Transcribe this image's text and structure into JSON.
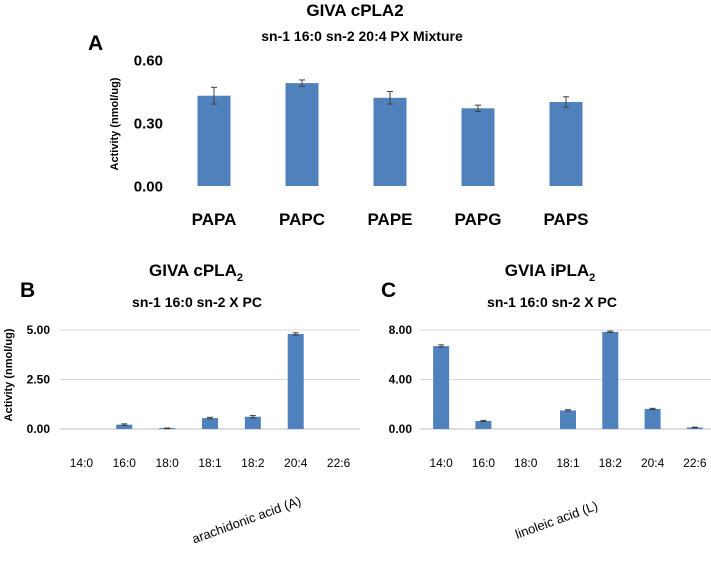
{
  "chart_data": [
    {
      "panel": "A",
      "type": "bar",
      "title": "GIVA cPLA2",
      "subtitle": "sn-1 16:0 sn-2 20:4 PX Mixture",
      "ylabel": "Activity (nmol/ug)",
      "xlabel": "",
      "categories": [
        "PAPA",
        "PAPC",
        "PAPE",
        "PAPG",
        "PAPS"
      ],
      "values": [
        0.43,
        0.49,
        0.42,
        0.37,
        0.4
      ],
      "errors": [
        0.04,
        0.015,
        0.03,
        0.015,
        0.025
      ],
      "ylim": [
        0,
        0.6
      ],
      "yticks": [
        "0.00",
        "0.30",
        "0.60"
      ],
      "ytick_values": [
        0,
        0.3,
        0.6
      ],
      "color": "#4f81bd"
    },
    {
      "panel": "B",
      "type": "bar",
      "title": "GIVA cPLA",
      "title_sub": "2",
      "subtitle": "sn-1 16:0 sn-2 X PC",
      "ylabel": "Activity (nmol/ug)",
      "xlabel": "arachidonic acid (A)",
      "categories": [
        "14:0",
        "16:0",
        "18:0",
        "18:1",
        "18:2",
        "20:4",
        "22:6"
      ],
      "values": [
        0.0,
        0.22,
        0.03,
        0.55,
        0.62,
        4.8,
        0.0
      ],
      "errors": [
        0.0,
        0.04,
        0.02,
        0.04,
        0.06,
        0.06,
        0.0
      ],
      "ylim": [
        0,
        5
      ],
      "yticks": [
        "0.00",
        "2.50",
        "5.00"
      ],
      "ytick_values": [
        0,
        2.5,
        5
      ],
      "color": "#4f81bd"
    },
    {
      "panel": "C",
      "type": "bar",
      "title": "GVIA iPLA",
      "title_sub": "2",
      "subtitle": "sn-1 16:0 sn-2 X PC",
      "ylabel": "",
      "xlabel": "linoleic acid (L)",
      "categories": [
        "14:0",
        "16:0",
        "18:0",
        "18:1",
        "18:2",
        "20:4",
        "22:6"
      ],
      "values": [
        6.7,
        0.65,
        0.0,
        1.5,
        7.85,
        1.62,
        0.12
      ],
      "errors": [
        0.1,
        0.05,
        0.0,
        0.06,
        0.06,
        0.05,
        0.03
      ],
      "ylim": [
        0,
        8
      ],
      "yticks": [
        "0.00",
        "4.00",
        "8.00"
      ],
      "ytick_values": [
        0,
        4,
        8
      ],
      "color": "#4f81bd"
    }
  ]
}
